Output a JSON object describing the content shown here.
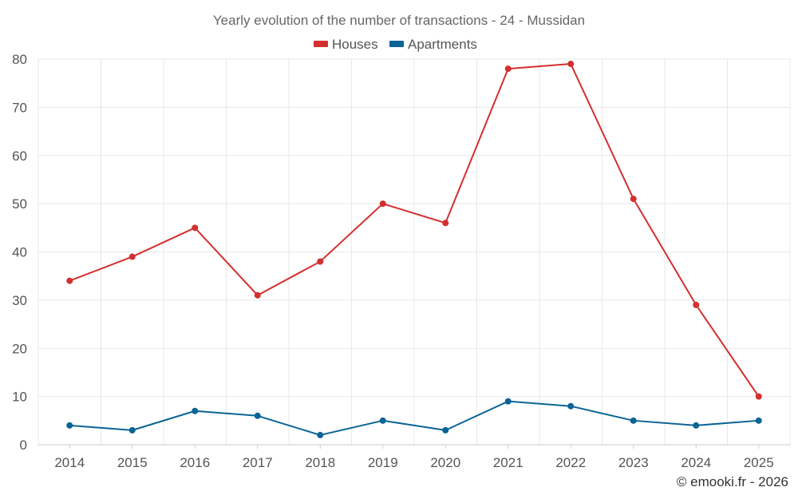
{
  "chart_data": {
    "type": "line",
    "title": "Yearly evolution of the number of transactions - 24 - Mussidan",
    "categories": [
      "2014",
      "2015",
      "2016",
      "2017",
      "2018",
      "2019",
      "2020",
      "2021",
      "2022",
      "2023",
      "2024",
      "2025"
    ],
    "series": [
      {
        "name": "Houses",
        "color": "#d32f2f",
        "values": [
          34,
          39,
          45,
          31,
          38,
          50,
          46,
          78,
          79,
          51,
          29,
          10
        ]
      },
      {
        "name": "Apartments",
        "color": "#0a6496",
        "values": [
          4,
          3,
          7,
          6,
          2,
          5,
          3,
          9,
          8,
          5,
          4,
          5
        ]
      }
    ],
    "ylim": [
      0,
      80
    ],
    "yticks": [
      0,
      10,
      20,
      30,
      40,
      50,
      60,
      70,
      80
    ],
    "xlabel": "",
    "ylabel": "",
    "grid": true,
    "legend": "top-center"
  },
  "credit": "© emooki.fr - 2026"
}
